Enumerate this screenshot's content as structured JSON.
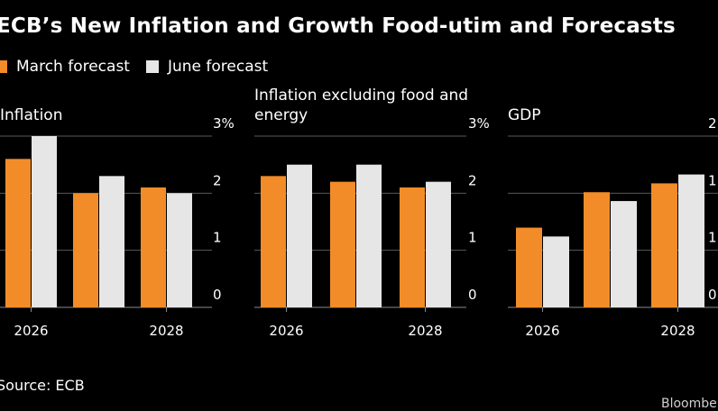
{
  "header": {
    "title": "ECB’s New Inflation and Growth Food-utim and Forecasts"
  },
  "legend": [
    {
      "label": "March forecast",
      "color": "#F28C28"
    },
    {
      "label": "June forecast",
      "color": "#E6E6E6"
    }
  ],
  "footer": {
    "source": "Source: ECB",
    "brand": "Bloomberg"
  },
  "chart_data": [
    {
      "type": "bar",
      "title": [
        "Inflation"
      ],
      "categories": [
        "2026",
        "2027",
        "2028"
      ],
      "x_tick_labels": [
        "2026",
        "",
        "2028"
      ],
      "series": [
        {
          "name": "March forecast",
          "values": [
            2.6,
            2.0,
            2.1
          ]
        },
        {
          "name": "June forecast",
          "values": [
            3.0,
            2.3,
            2.0
          ]
        }
      ],
      "ylim": [
        0,
        3
      ],
      "y_tick_labels": [
        "0",
        "1",
        "2",
        "3%"
      ],
      "grid": true
    },
    {
      "type": "bar",
      "title": [
        "Inflation excluding food and",
        "energy"
      ],
      "categories": [
        "2026",
        "2027",
        "2028"
      ],
      "x_tick_labels": [
        "2026",
        "",
        "2028"
      ],
      "series": [
        {
          "name": "March forecast",
          "values": [
            2.3,
            2.2,
            2.1
          ]
        },
        {
          "name": "June forecast",
          "values": [
            2.5,
            2.5,
            2.2
          ]
        }
      ],
      "ylim": [
        0,
        3
      ],
      "y_tick_labels": [
        "0",
        "1",
        "2",
        "3%"
      ],
      "grid": true
    },
    {
      "type": "bar",
      "title": [
        "GDP"
      ],
      "categories": [
        "2026",
        "2027",
        "2028"
      ],
      "x_tick_labels": [
        "2026",
        "",
        "2028"
      ],
      "series": [
        {
          "name": "March forecast",
          "values": [
            1.35,
            1.95,
            2.1
          ]
        },
        {
          "name": "June forecast",
          "values": [
            1.2,
            1.8,
            2.25
          ]
        }
      ],
      "ylim": [
        0,
        2.9
      ],
      "y_tick_labels": [
        "0",
        "1",
        "1",
        "2"
      ],
      "grid": true
    }
  ]
}
